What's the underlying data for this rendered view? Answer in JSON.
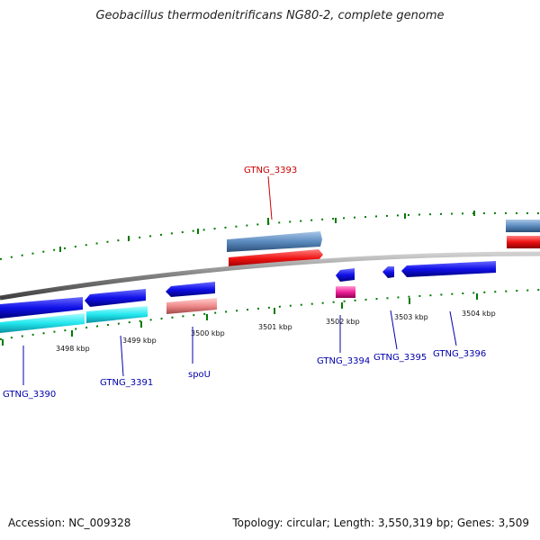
{
  "title": "Geobacillus thermodenitrificans NG80-2, complete genome",
  "footer": {
    "accession": "Accession: NC_009328",
    "summary": "Topology: circular; Length: 3,550,319 bp; Genes: 3,509"
  },
  "colors": {
    "backbone": "#808080",
    "tick": "#007a00",
    "gene_blue": "#1010e8",
    "gene_cyan": "#22e8ee",
    "gene_steel": "#5b8bbf",
    "gene_red": "#ee1111",
    "gene_pink": "#f08a8a",
    "gene_magenta": "#f0209a",
    "label_blue": "#0000aa",
    "label_red": "#cc0000"
  },
  "ticks": [
    "3498 kbp",
    "3499 kbp",
    "3500 kbp",
    "3501 kbp",
    "3502 kbp",
    "3503 kbp",
    "3504 kbp"
  ],
  "labels": {
    "gtng_3393": "GTNG_3393",
    "gtng_3390": "GTNG_3390",
    "gtng_3391": "GTNG_3391",
    "spou": "spoU",
    "gtng_3394": "GTNG_3394",
    "gtng_3395": "GTNG_3395",
    "gtng_3396": "GTNG_3396"
  }
}
